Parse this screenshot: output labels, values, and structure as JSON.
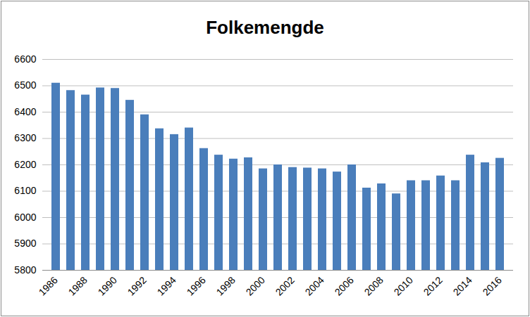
{
  "chart_data": {
    "type": "bar",
    "title": "Folkemengde",
    "categories": [
      "1986",
      null,
      "1988",
      null,
      "1990",
      null,
      "1992",
      null,
      "1994",
      null,
      "1996",
      null,
      "1998",
      null,
      "2000",
      null,
      "2002",
      null,
      "2004",
      null,
      "2006",
      null,
      "2008",
      null,
      "2010",
      null,
      "2012",
      null,
      "2014",
      null,
      "2016"
    ],
    "values": [
      6510,
      6482,
      6465,
      6492,
      6490,
      6445,
      6390,
      6337,
      6315,
      6340,
      6262,
      6237,
      6222,
      6227,
      6185,
      6200,
      6190,
      6188,
      6185,
      6173,
      6200,
      6112,
      6128,
      6090,
      6140,
      6140,
      6158,
      6140,
      6237,
      6208,
      6225
    ],
    "color": "#4a7ebb",
    "ylim": [
      5800,
      6600
    ],
    "yticks": [
      5800,
      5900,
      6000,
      6100,
      6200,
      6300,
      6400,
      6500,
      6600
    ],
    "grid": true
  }
}
